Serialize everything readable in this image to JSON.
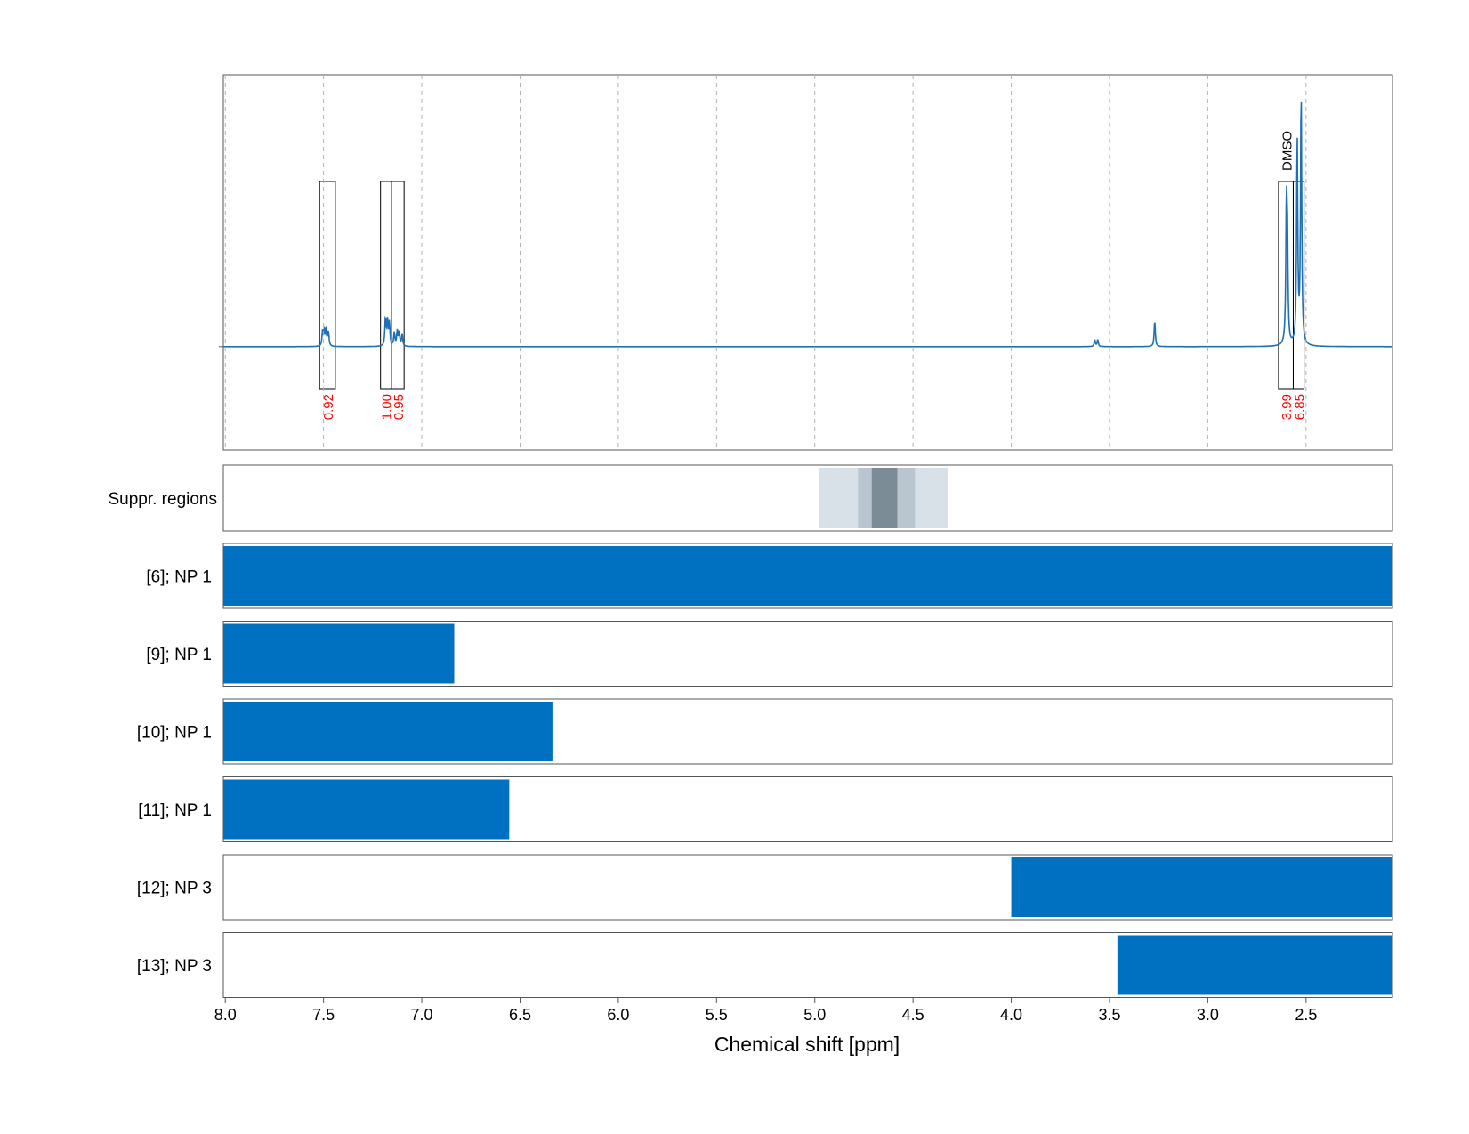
{
  "chart_data": {
    "type": "line",
    "xlabel": "Chemical shift [ppm]",
    "xlim": [
      8.01,
      2.06
    ],
    "x_ticks": [
      {
        "v": 8.0,
        "label": "8.0"
      },
      {
        "v": 7.5,
        "label": "7.5"
      },
      {
        "v": 7.0,
        "label": "7.0"
      },
      {
        "v": 6.5,
        "label": "6.5"
      },
      {
        "v": 6.0,
        "label": "6.0"
      },
      {
        "v": 5.5,
        "label": "5.5"
      },
      {
        "v": 5.0,
        "label": "5.0"
      },
      {
        "v": 4.5,
        "label": "4.5"
      },
      {
        "v": 4.0,
        "label": "4.0"
      },
      {
        "v": 3.5,
        "label": "3.5"
      },
      {
        "v": 3.0,
        "label": "3.0"
      },
      {
        "v": 2.5,
        "label": "2.5"
      }
    ],
    "grid": true,
    "colors": {
      "spectrum": "#1f6fb5",
      "bar": "#0070c0",
      "integral_label": "#ff0000",
      "box": "#000000",
      "frame": "#555555",
      "grid": "#b0b0b0"
    },
    "spectrum": {
      "baseline": 0,
      "ylim": [
        -0.38,
        1.0
      ],
      "peaks": [
        {
          "ppm": 7.505,
          "h": 0.055
        },
        {
          "ppm": 7.495,
          "h": 0.06
        },
        {
          "ppm": 7.485,
          "h": 0.06
        },
        {
          "ppm": 7.475,
          "h": 0.05
        },
        {
          "ppm": 7.185,
          "h": 0.1
        },
        {
          "ppm": 7.175,
          "h": 0.09
        },
        {
          "ppm": 7.165,
          "h": 0.085
        },
        {
          "ppm": 7.14,
          "h": 0.05
        },
        {
          "ppm": 7.125,
          "h": 0.055
        },
        {
          "ppm": 7.115,
          "h": 0.05
        },
        {
          "ppm": 7.1,
          "h": 0.045
        },
        {
          "ppm": 3.575,
          "h": 0.025
        },
        {
          "ppm": 3.56,
          "h": 0.025
        },
        {
          "ppm": 3.27,
          "h": 0.095
        },
        {
          "ppm": 2.6,
          "h": 0.47
        },
        {
          "ppm": 2.595,
          "h": 0.36
        },
        {
          "ppm": 2.545,
          "h": 0.75
        },
        {
          "ppm": 2.525,
          "h": 0.93
        }
      ],
      "integrals": [
        {
          "from": 7.52,
          "to": 7.44,
          "value": "0.92"
        },
        {
          "from": 7.21,
          "to": 7.155,
          "value": "1.00"
        },
        {
          "from": 7.155,
          "to": 7.09,
          "value": "0.95"
        },
        {
          "from": 2.64,
          "to": 2.565,
          "value": "3.99"
        },
        {
          "from": 2.565,
          "to": 2.51,
          "value": "6.85"
        }
      ],
      "annotations": [
        {
          "ppm": 2.6,
          "text": "DMSO"
        }
      ]
    },
    "suppressed_regions": {
      "label": "Suppr. regions",
      "bands": [
        {
          "from": 4.98,
          "to": 4.32,
          "level": 1
        },
        {
          "from": 4.78,
          "to": 4.49,
          "level": 2
        },
        {
          "from": 4.71,
          "to": 4.58,
          "level": 3
        }
      ]
    },
    "ranges": [
      {
        "label": "[6]; NP 1",
        "from": 8.01,
        "to": 2.06
      },
      {
        "label": "[9]; NP 1",
        "from": 8.01,
        "to": 6.835
      },
      {
        "label": "[10]; NP 1",
        "from": 8.01,
        "to": 6.335
      },
      {
        "label": "[11]; NP 1",
        "from": 8.01,
        "to": 6.555
      },
      {
        "label": "[12]; NP 3",
        "from": 4.0,
        "to": 2.06
      },
      {
        "label": "[13]; NP 3",
        "from": 3.46,
        "to": 2.06
      }
    ]
  }
}
